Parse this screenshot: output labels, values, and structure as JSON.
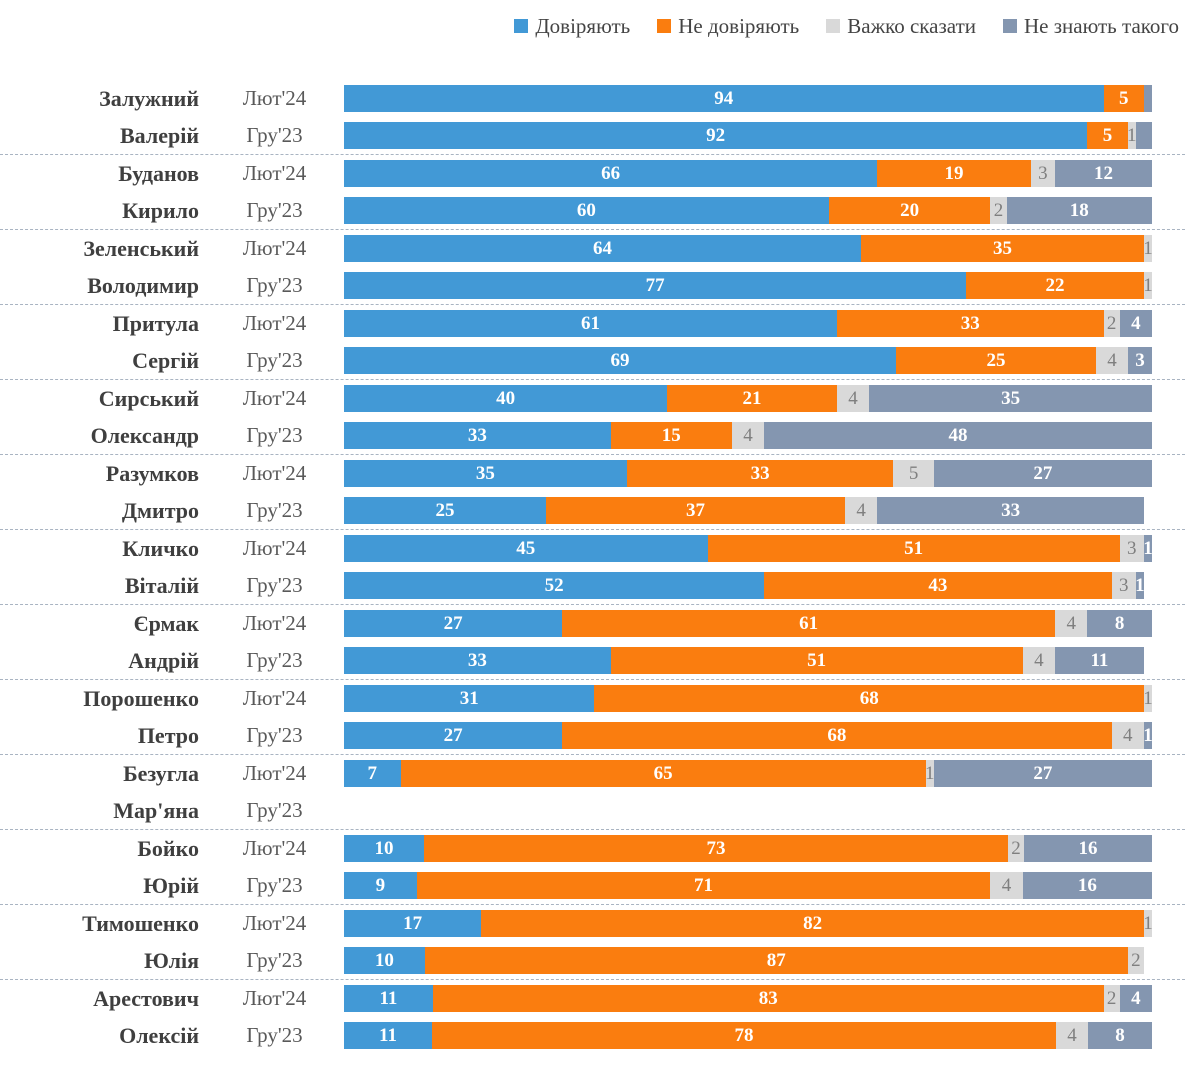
{
  "chart_data": {
    "type": "bar",
    "orientation": "horizontal",
    "stacked": true,
    "xlim": [
      0,
      100
    ],
    "grid": false,
    "legend_position": "top-right",
    "series": [
      "Довіряють",
      "Не довіряють",
      "Важко сказати",
      "Не знають такого"
    ],
    "series_colors": [
      "#4299D6",
      "#FA7D0F",
      "#D9D9D9",
      "#8496B0"
    ],
    "periods": [
      "Лют'24",
      "Гру'23"
    ],
    "groups": [
      {
        "name_lines": [
          "Залужний",
          "Валерій"
        ],
        "rows": [
          {
            "period": "Лют'24",
            "values": [
              94,
              5,
              0,
              1
            ],
            "labels": [
              "94",
              "5",
              "",
              ""
            ]
          },
          {
            "period": "Гру'23",
            "values": [
              92,
              5,
              1,
              2
            ],
            "labels": [
              "92",
              "5",
              "1",
              ""
            ]
          }
        ]
      },
      {
        "name_lines": [
          "Буданов",
          "Кирило"
        ],
        "rows": [
          {
            "period": "Лют'24",
            "values": [
              66,
              19,
              3,
              12
            ],
            "labels": [
              "66",
              "19",
              "3",
              "12"
            ]
          },
          {
            "period": "Гру'23",
            "values": [
              60,
              20,
              2,
              18
            ],
            "labels": [
              "60",
              "20",
              "2",
              "18"
            ]
          }
        ]
      },
      {
        "name_lines": [
          "Зеленський",
          "Володимир"
        ],
        "rows": [
          {
            "period": "Лют'24",
            "values": [
              64,
              35,
              1,
              0
            ],
            "labels": [
              "64",
              "35",
              "1",
              ""
            ]
          },
          {
            "period": "Гру'23",
            "values": [
              77,
              22,
              1,
              0
            ],
            "labels": [
              "77",
              "22",
              "1",
              ""
            ]
          }
        ]
      },
      {
        "name_lines": [
          "Притула",
          "Сергій"
        ],
        "rows": [
          {
            "period": "Лют'24",
            "values": [
              61,
              33,
              2,
              4
            ],
            "labels": [
              "61",
              "33",
              "2",
              "4"
            ]
          },
          {
            "period": "Гру'23",
            "values": [
              69,
              25,
              4,
              3
            ],
            "labels": [
              "69",
              "25",
              "4",
              "3"
            ]
          }
        ]
      },
      {
        "name_lines": [
          "Сирський",
          "Олександр"
        ],
        "rows": [
          {
            "period": "Лют'24",
            "values": [
              40,
              21,
              4,
              35
            ],
            "labels": [
              "40",
              "21",
              "4",
              "35"
            ]
          },
          {
            "period": "Гру'23",
            "values": [
              33,
              15,
              4,
              48
            ],
            "labels": [
              "33",
              "15",
              "4",
              "48"
            ]
          }
        ]
      },
      {
        "name_lines": [
          "Разумков",
          "Дмитро"
        ],
        "rows": [
          {
            "period": "Лют'24",
            "values": [
              35,
              33,
              5,
              27
            ],
            "labels": [
              "35",
              "33",
              "5",
              "27"
            ]
          },
          {
            "period": "Гру'23",
            "values": [
              25,
              37,
              4,
              33
            ],
            "labels": [
              "25",
              "37",
              "4",
              "33"
            ]
          }
        ]
      },
      {
        "name_lines": [
          "Кличко",
          "Віталій"
        ],
        "rows": [
          {
            "period": "Лют'24",
            "values": [
              45,
              51,
              3,
              1
            ],
            "labels": [
              "45",
              "51",
              "3",
              "1"
            ]
          },
          {
            "period": "Гру'23",
            "values": [
              52,
              43,
              3,
              1
            ],
            "labels": [
              "52",
              "43",
              "3",
              "1"
            ]
          }
        ]
      },
      {
        "name_lines": [
          "Єрмак",
          "Андрій"
        ],
        "rows": [
          {
            "period": "Лют'24",
            "values": [
              27,
              61,
              4,
              8
            ],
            "labels": [
              "27",
              "61",
              "4",
              "8"
            ]
          },
          {
            "period": "Гру'23",
            "values": [
              33,
              51,
              4,
              11
            ],
            "labels": [
              "33",
              "51",
              "4",
              "11"
            ]
          }
        ]
      },
      {
        "name_lines": [
          "Порошенко",
          "Петро"
        ],
        "rows": [
          {
            "period": "Лют'24",
            "values": [
              31,
              68,
              1,
              0
            ],
            "labels": [
              "31",
              "68",
              "1",
              ""
            ]
          },
          {
            "period": "Гру'23",
            "values": [
              27,
              68,
              4,
              1
            ],
            "labels": [
              "27",
              "68",
              "4",
              "1"
            ]
          }
        ]
      },
      {
        "name_lines": [
          "Безугла",
          "Мар'яна"
        ],
        "rows": [
          {
            "period": "Лют'24",
            "values": [
              7,
              65,
              1,
              27
            ],
            "labels": [
              "7",
              "65",
              "1",
              "27"
            ]
          },
          {
            "period": "Гру'23",
            "values": [
              0,
              0,
              0,
              0
            ],
            "labels": [
              "",
              "",
              "",
              ""
            ]
          }
        ]
      },
      {
        "name_lines": [
          "Бойко",
          "Юрій"
        ],
        "rows": [
          {
            "period": "Лют'24",
            "values": [
              10,
              73,
              2,
              16
            ],
            "labels": [
              "10",
              "73",
              "2",
              "16"
            ]
          },
          {
            "period": "Гру'23",
            "values": [
              9,
              71,
              4,
              16
            ],
            "labels": [
              "9",
              "71",
              "4",
              "16"
            ]
          }
        ]
      },
      {
        "name_lines": [
          "Тимошенко",
          "Юлія"
        ],
        "rows": [
          {
            "period": "Лют'24",
            "values": [
              17,
              82,
              1,
              0
            ],
            "labels": [
              "17",
              "82",
              "1",
              ""
            ]
          },
          {
            "period": "Гру'23",
            "values": [
              10,
              87,
              2,
              0
            ],
            "labels": [
              "10",
              "87",
              "2",
              ""
            ]
          }
        ]
      },
      {
        "name_lines": [
          "Арестович",
          "Олексій"
        ],
        "rows": [
          {
            "period": "Лют'24",
            "values": [
              11,
              83,
              2,
              4
            ],
            "labels": [
              "11",
              "83",
              "2",
              "4"
            ]
          },
          {
            "period": "Гру'23",
            "values": [
              11,
              78,
              4,
              8
            ],
            "labels": [
              "11",
              "78",
              "4",
              "8"
            ]
          }
        ]
      }
    ]
  },
  "style_colors": {
    "value_label_white": "#ffffff",
    "value_label_gray": "#7f7f7f",
    "name_text": "#3f3f3f",
    "period_text": "#595959",
    "legend_text": "#444444",
    "separator": "#a9b4c2"
  }
}
